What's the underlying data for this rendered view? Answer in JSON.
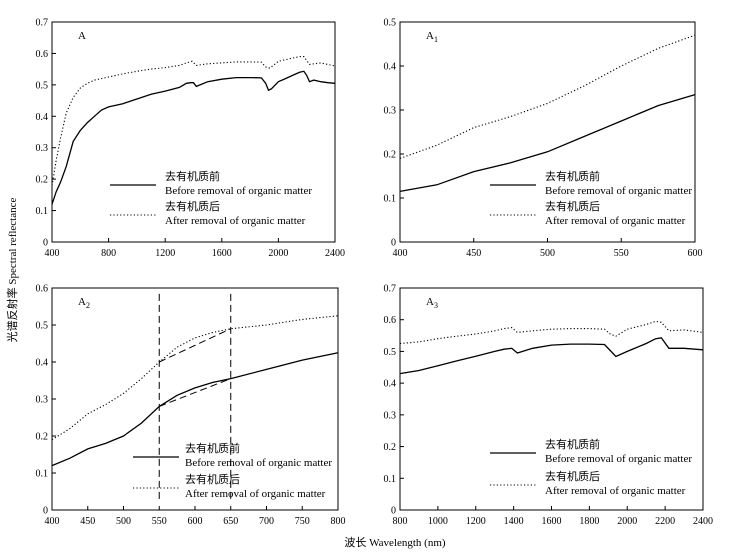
{
  "figure": {
    "ylabel": "光谱反射率 Spectral reflectance",
    "xlabel": "波长 Wavelength (nm)"
  },
  "legend": {
    "before_cn": "去有机质前",
    "before_en": "Before removal of organic matter",
    "after_cn": "去有机质后",
    "after_en": "After removal of organic matter"
  },
  "chart_data": [
    {
      "id": "A",
      "type": "line",
      "panel_label": "A",
      "panel_sub": "",
      "xlim": [
        400,
        2400
      ],
      "ylim": [
        0,
        0.7
      ],
      "xticks": [
        400,
        800,
        1200,
        1600,
        2000,
        2400
      ],
      "yticks": [
        0,
        0.1,
        0.2,
        0.3,
        0.4,
        0.5,
        0.6,
        0.7
      ],
      "grid": false,
      "legend_position": "bottom-center",
      "series": [
        {
          "style": "solid",
          "x": [
            400,
            430,
            460,
            500,
            550,
            600,
            650,
            700,
            750,
            800,
            900,
            1000,
            1100,
            1200,
            1300,
            1350,
            1380,
            1400,
            1420,
            1500,
            1600,
            1700,
            1800,
            1880,
            1910,
            1930,
            1950,
            2000,
            2050,
            2100,
            2150,
            2180,
            2200,
            2220,
            2250,
            2300,
            2350,
            2400
          ],
          "y": [
            0.12,
            0.16,
            0.19,
            0.24,
            0.32,
            0.355,
            0.38,
            0.4,
            0.42,
            0.43,
            0.44,
            0.455,
            0.47,
            0.48,
            0.492,
            0.505,
            0.507,
            0.507,
            0.495,
            0.51,
            0.518,
            0.523,
            0.523,
            0.522,
            0.505,
            0.483,
            0.487,
            0.51,
            0.52,
            0.53,
            0.54,
            0.543,
            0.53,
            0.51,
            0.515,
            0.51,
            0.507,
            0.505
          ]
        },
        {
          "style": "dotted",
          "x": [
            400,
            430,
            460,
            500,
            550,
            600,
            650,
            700,
            800,
            900,
            1000,
            1100,
            1200,
            1300,
            1350,
            1390,
            1420,
            1500,
            1600,
            1700,
            1800,
            1880,
            1910,
            1940,
            2000,
            2100,
            2150,
            2180,
            2220,
            2300,
            2400
          ],
          "y": [
            0.18,
            0.26,
            0.33,
            0.41,
            0.46,
            0.49,
            0.505,
            0.515,
            0.525,
            0.535,
            0.543,
            0.55,
            0.555,
            0.562,
            0.57,
            0.575,
            0.562,
            0.567,
            0.57,
            0.573,
            0.573,
            0.572,
            0.557,
            0.553,
            0.575,
            0.585,
            0.59,
            0.59,
            0.565,
            0.57,
            0.56
          ]
        }
      ]
    },
    {
      "id": "A1",
      "type": "line",
      "panel_label": "A",
      "panel_sub": "1",
      "xlim": [
        400,
        600
      ],
      "ylim": [
        0,
        0.5
      ],
      "xticks": [
        400,
        450,
        500,
        550,
        600
      ],
      "yticks": [
        0,
        0.1,
        0.2,
        0.3,
        0.4,
        0.5
      ],
      "grid": false,
      "legend_position": "bottom-right",
      "series": [
        {
          "style": "solid",
          "x": [
            400,
            425,
            450,
            475,
            500,
            525,
            550,
            575,
            600
          ],
          "y": [
            0.115,
            0.13,
            0.16,
            0.18,
            0.205,
            0.24,
            0.275,
            0.31,
            0.335
          ]
        },
        {
          "style": "dotted",
          "x": [
            400,
            425,
            450,
            475,
            500,
            525,
            550,
            575,
            600
          ],
          "y": [
            0.19,
            0.22,
            0.26,
            0.285,
            0.315,
            0.355,
            0.4,
            0.44,
            0.47
          ]
        }
      ]
    },
    {
      "id": "A2",
      "type": "line",
      "panel_label": "A",
      "panel_sub": "2",
      "xlim": [
        400,
        800
      ],
      "ylim": [
        0,
        0.6
      ],
      "xticks": [
        400,
        450,
        500,
        550,
        600,
        650,
        700,
        750,
        800
      ],
      "yticks": [
        0,
        0.1,
        0.2,
        0.3,
        0.4,
        0.5,
        0.6
      ],
      "grid": false,
      "legend_position": "bottom-center",
      "series": [
        {
          "style": "solid",
          "x": [
            400,
            425,
            450,
            475,
            500,
            525,
            550,
            575,
            600,
            625,
            650,
            700,
            750,
            800
          ],
          "y": [
            0.12,
            0.14,
            0.165,
            0.18,
            0.2,
            0.235,
            0.28,
            0.31,
            0.33,
            0.345,
            0.355,
            0.38,
            0.405,
            0.425
          ]
        },
        {
          "style": "dotted",
          "x": [
            400,
            425,
            450,
            475,
            500,
            525,
            550,
            575,
            600,
            625,
            650,
            700,
            750,
            800
          ],
          "y": [
            0.19,
            0.22,
            0.26,
            0.285,
            0.315,
            0.355,
            0.4,
            0.44,
            0.465,
            0.48,
            0.49,
            0.5,
            0.515,
            0.525
          ]
        }
      ],
      "annotations": {
        "vlines": [
          550,
          650
        ],
        "vline_ylim": [
          0.03,
          0.59
        ],
        "chords": [
          {
            "x": [
              550,
              650
            ],
            "y": [
              0.28,
              0.355
            ]
          },
          {
            "x": [
              550,
              650
            ],
            "y": [
              0.4,
              0.49
            ]
          }
        ]
      }
    },
    {
      "id": "A3",
      "type": "line",
      "panel_label": "A",
      "panel_sub": "3",
      "xlim": [
        800,
        2400
      ],
      "ylim": [
        0,
        0.7
      ],
      "xticks": [
        800,
        1000,
        1200,
        1400,
        1600,
        1800,
        2000,
        2200,
        2400
      ],
      "yticks": [
        0,
        0.1,
        0.2,
        0.3,
        0.4,
        0.5,
        0.6,
        0.7
      ],
      "grid": false,
      "legend_position": "bottom-right",
      "series": [
        {
          "style": "solid",
          "x": [
            800,
            900,
            1000,
            1100,
            1200,
            1300,
            1350,
            1390,
            1420,
            1500,
            1600,
            1700,
            1800,
            1880,
            1910,
            1940,
            2000,
            2100,
            2150,
            2180,
            2220,
            2300,
            2400
          ],
          "y": [
            0.43,
            0.44,
            0.455,
            0.47,
            0.485,
            0.5,
            0.507,
            0.51,
            0.495,
            0.51,
            0.52,
            0.523,
            0.523,
            0.522,
            0.503,
            0.484,
            0.5,
            0.525,
            0.54,
            0.543,
            0.51,
            0.51,
            0.505
          ]
        },
        {
          "style": "dotted",
          "x": [
            800,
            900,
            1000,
            1100,
            1200,
            1300,
            1350,
            1390,
            1420,
            1500,
            1600,
            1700,
            1800,
            1880,
            1910,
            1940,
            2000,
            2100,
            2150,
            2180,
            2220,
            2300,
            2400
          ],
          "y": [
            0.525,
            0.53,
            0.54,
            0.548,
            0.555,
            0.565,
            0.572,
            0.575,
            0.56,
            0.565,
            0.57,
            0.572,
            0.572,
            0.57,
            0.555,
            0.548,
            0.57,
            0.585,
            0.595,
            0.592,
            0.565,
            0.568,
            0.56
          ]
        }
      ]
    }
  ]
}
